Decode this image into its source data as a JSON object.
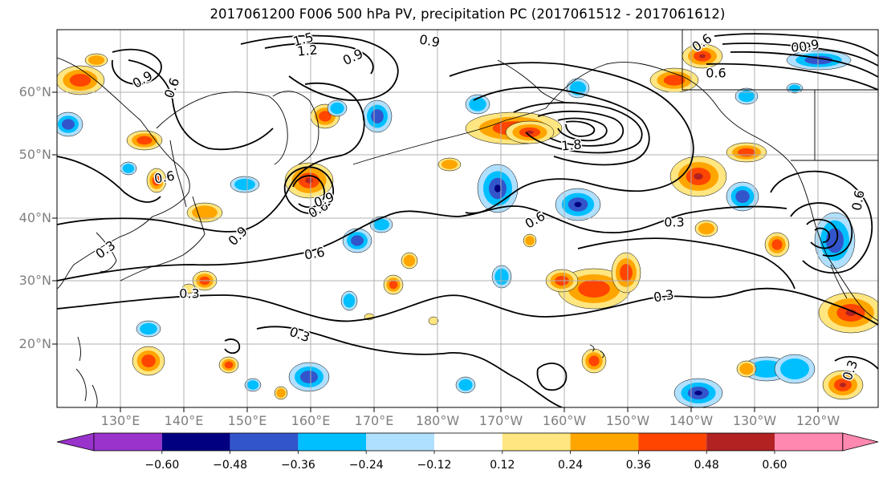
{
  "title": "2017061200 F006 500 hPa PV, precipitation PC (2017061512 - 2017061612)",
  "lat_labels": [
    "60°N",
    "50°N",
    "40°N",
    "30°N",
    "20°N"
  ],
  "lon_labels": [
    "130°E",
    "140°E",
    "150°E",
    "160°E",
    "170°E",
    "180°W",
    "170°W",
    "160°W",
    "150°W",
    "140°W",
    "130°W",
    "120°W"
  ],
  "contour_labels": [
    {
      "text": "1.5"
    },
    {
      "text": "1.2"
    },
    {
      "text": "0.9"
    },
    {
      "text": "0.9"
    },
    {
      "text": "0.6"
    },
    {
      "text": "0.9"
    },
    {
      "text": "0.6"
    },
    {
      "text": "0.3"
    },
    {
      "text": "0.6"
    },
    {
      "text": "0.9"
    },
    {
      "text": "1.8"
    },
    {
      "text": "0.6"
    },
    {
      "text": "0.3"
    },
    {
      "text": "0.6"
    },
    {
      "text": "0.9"
    },
    {
      "text": "0.3"
    },
    {
      "text": "0.6"
    },
    {
      "text": "0.3"
    },
    {
      "text": "0.3"
    },
    {
      "text": "0.6"
    },
    {
      "text": "0.9"
    },
    {
      "text": "0.3"
    },
    {
      "text": "0.9"
    },
    {
      "text": "0.6"
    }
  ],
  "colorbar": {
    "ticks": [
      "−0.60",
      "−0.48",
      "−0.36",
      "−0.24",
      "−0.12",
      "0.12",
      "0.24",
      "0.36",
      "0.48",
      "0.60"
    ],
    "colors": [
      "#9933cc",
      "#000080",
      "#3355cc",
      "#00bfff",
      "#b0e0ff",
      "#ffffff",
      "#ffe680",
      "#ffa500",
      "#ff4500",
      "#b22222",
      "#ff88b0"
    ]
  },
  "colors": {
    "coast": "#000000",
    "grid": "#b0b0b0",
    "contour": "#000000",
    "pos": [
      "#ffe680",
      "#ffa500",
      "#ff4500",
      "#b22222"
    ],
    "neg": [
      "#b0e0ff",
      "#00bfff",
      "#3355cc",
      "#000080"
    ]
  }
}
